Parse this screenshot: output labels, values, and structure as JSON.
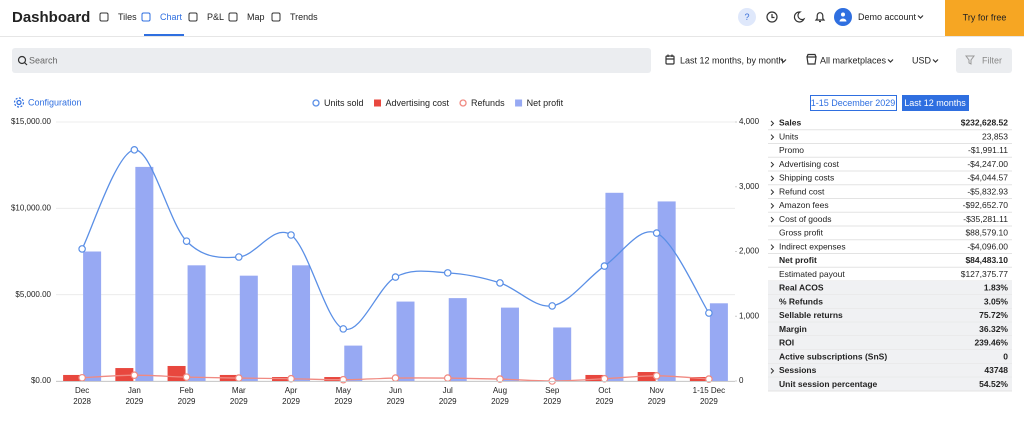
{
  "header": {
    "title": "Dashboard",
    "nav": [
      "Tiles",
      "Chart",
      "P&L",
      "Map",
      "Trends"
    ],
    "active_nav": 1,
    "help": "?",
    "account": "Demo account",
    "cta": "Try for free"
  },
  "toolbar": {
    "search": "Search",
    "period": "Last 12 months, by month",
    "marketplace": "All marketplaces",
    "currency": "USD",
    "filter": "Filter"
  },
  "chart_controls": {
    "configuration": "Configuration",
    "ranges": [
      "1-15 December 2029",
      "Last 12 months"
    ],
    "active_range": 1
  },
  "chart_data": {
    "type": "combo",
    "categories": [
      "Dec",
      "Jan",
      "Feb",
      "Mar",
      "Apr",
      "May",
      "Jun",
      "Jul",
      "Aug",
      "Sep",
      "Oct",
      "Nov",
      "1-15 Dec"
    ],
    "category_years": [
      "2028",
      "2029",
      "2029",
      "2029",
      "2029",
      "2029",
      "2029",
      "2029",
      "2029",
      "2029",
      "2029",
      "2029",
      "2029"
    ],
    "ylim": [
      0,
      15000
    ],
    "yticks": [
      {
        "value": 0,
        "label": "$0.00"
      },
      {
        "value": 5000,
        "label": "$5,000.00"
      },
      {
        "value": 10000,
        "label": "$10,000.00"
      },
      {
        "value": 15000,
        "label": "$15,000.00"
      }
    ],
    "y2lim": [
      0,
      4000
    ],
    "y2ticks": [
      0,
      {
        "value": 1000,
        "label": "1,000"
      },
      {
        "value": 2000,
        "label": "2,000"
      },
      {
        "value": 3000,
        "label": "3,000"
      },
      {
        "value": 4000,
        "label": "4,000"
      }
    ],
    "grid": true,
    "legend": "top",
    "series": [
      {
        "name": "Units sold",
        "type": "line",
        "axis": "y2",
        "color": "#5a8fe6",
        "values": [
          2040,
          3570,
          2160,
          1915,
          2255,
          805,
          1605,
          1670,
          1515,
          1160,
          1775,
          2285,
          1050
        ]
      },
      {
        "name": "Advertising cost",
        "type": "bar",
        "color": "#e8473e",
        "values": [
          350,
          750,
          870,
          350,
          230,
          230,
          0,
          0,
          0,
          0,
          350,
          520,
          230
        ]
      },
      {
        "name": "Refunds",
        "type": "line",
        "axis": "y2",
        "color": "#f08a82",
        "values": [
          50,
          90,
          60,
          45,
          35,
          20,
          45,
          45,
          30,
          0,
          35,
          80,
          30
        ]
      },
      {
        "name": "Net profit",
        "type": "bar",
        "color": "#97a9f3",
        "values": [
          7500,
          12400,
          6700,
          6100,
          6700,
          2050,
          4600,
          4800,
          4250,
          3100,
          10900,
          10400,
          4500
        ]
      }
    ]
  },
  "summary": {
    "rows": [
      {
        "label": "Sales",
        "value": "$232,628.52",
        "expand": true,
        "bold": true,
        "shaded": false
      },
      {
        "label": "Units",
        "value": "23,853",
        "expand": true,
        "bold": false,
        "shaded": false
      },
      {
        "label": "Promo",
        "value": "-$1,991.11",
        "expand": false,
        "bold": false,
        "shaded": false
      },
      {
        "label": "Advertising cost",
        "value": "-$4,247.00",
        "expand": true,
        "bold": false,
        "shaded": false
      },
      {
        "label": "Shipping costs",
        "value": "-$4,044.57",
        "expand": true,
        "bold": false,
        "shaded": false
      },
      {
        "label": "Refund cost",
        "value": "-$5,832.93",
        "expand": true,
        "bold": false,
        "shaded": false
      },
      {
        "label": "Amazon fees",
        "value": "-$92,652.70",
        "expand": true,
        "bold": false,
        "shaded": false
      },
      {
        "label": "Cost of goods",
        "value": "-$35,281.11",
        "expand": true,
        "bold": false,
        "shaded": false
      },
      {
        "label": "Gross profit",
        "value": "$88,579.10",
        "expand": false,
        "bold": false,
        "shaded": false
      },
      {
        "label": "Indirect expenses",
        "value": "-$4,096.00",
        "expand": true,
        "bold": false,
        "shaded": false
      },
      {
        "label": "Net profit",
        "value": "$84,483.10",
        "expand": false,
        "bold": true,
        "shaded": false
      },
      {
        "label": "Estimated payout",
        "value": "$127,375.77",
        "expand": false,
        "bold": false,
        "shaded": false
      },
      {
        "label": "Real ACOS",
        "value": "1.83%",
        "expand": false,
        "bold": true,
        "shaded": true
      },
      {
        "label": "% Refunds",
        "value": "3.05%",
        "expand": false,
        "bold": true,
        "shaded": true
      },
      {
        "label": "Sellable returns",
        "value": "75.72%",
        "expand": false,
        "bold": true,
        "shaded": true
      },
      {
        "label": "Margin",
        "value": "36.32%",
        "expand": false,
        "bold": true,
        "shaded": true
      },
      {
        "label": "ROI",
        "value": "239.46%",
        "expand": false,
        "bold": true,
        "shaded": true
      },
      {
        "label": "Active subscriptions (SnS)",
        "value": "0",
        "expand": false,
        "bold": true,
        "shaded": true
      },
      {
        "label": "Sessions",
        "value": "43748",
        "expand": true,
        "bold": true,
        "shaded": true
      },
      {
        "label": "Unit session percentage",
        "value": "54.52%",
        "expand": false,
        "bold": true,
        "shaded": true
      }
    ]
  }
}
